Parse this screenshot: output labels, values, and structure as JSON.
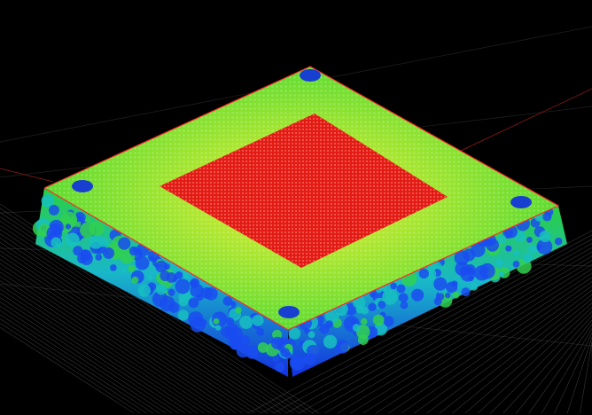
{
  "colors": {
    "background": "#000000",
    "core": "#e81818",
    "surface": "#5ee02a",
    "side_low": "#1a4cf0",
    "side_mid": "#18c0c0",
    "edge": "#ff2020",
    "grid": "#8a8a8a"
  }
}
